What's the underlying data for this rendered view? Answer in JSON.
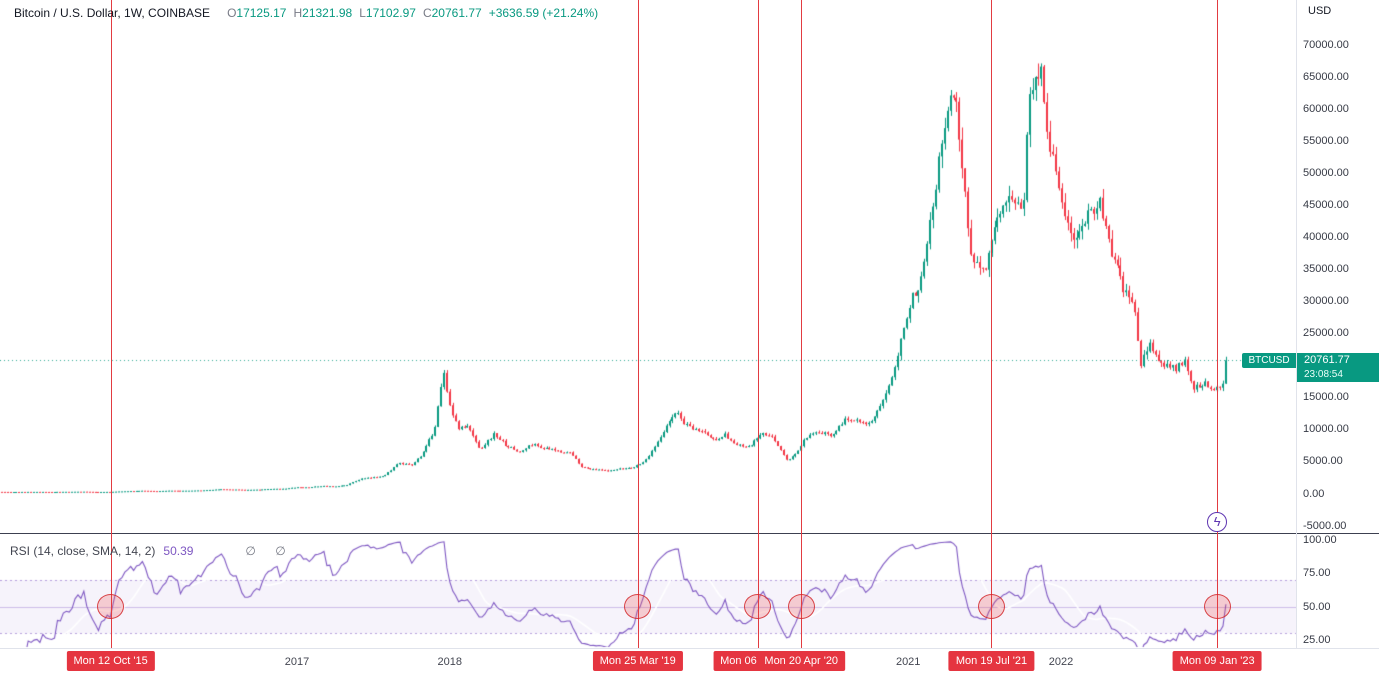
{
  "header": {
    "symbol_title": "Bitcoin / U.S. Dollar, 1W, COINBASE",
    "ohlc": {
      "o_label": "O",
      "o": "17125.17",
      "h_label": "H",
      "h": "21321.98",
      "l_label": "L",
      "l": "17102.97",
      "c_label": "C",
      "c": "20761.77",
      "change": "+3636.59 (+21.24%)"
    }
  },
  "symbol_badge": "BTCUSD",
  "price_axis": {
    "currency": "USD",
    "ticks": [
      "70000.00",
      "65000.00",
      "60000.00",
      "55000.00",
      "50000.00",
      "45000.00",
      "40000.00",
      "35000.00",
      "30000.00",
      "25000.00",
      "20000.00",
      "15000.00",
      "10000.00",
      "5000.00",
      "0.00",
      "-5000.00"
    ],
    "price_badge": "20761.77",
    "countdown": "23:08:54"
  },
  "rsi_panel": {
    "title": "RSI (14, close, SMA, 14, 2)",
    "value": "50.39",
    "empty_markers": "∅ ∅",
    "ticks": [
      "100.00",
      "75.00",
      "50.00",
      "25.00"
    ]
  },
  "time_axis": {
    "years": [
      "2017",
      "2018",
      "2021",
      "2022"
    ]
  },
  "markers": [
    {
      "date_label": "Mon 12 Oct '15",
      "date_value": 2015.78,
      "rsi_value": 50
    },
    {
      "date_label": "Mon 25 Mar '19",
      "date_value": 2019.23,
      "rsi_value": 50
    },
    {
      "date_label": "Mon 06 Jan '20",
      "date_value": 2020.014,
      "rsi_value": 50
    },
    {
      "date_label": "Mon 20 Apr '20",
      "date_value": 2020.3,
      "rsi_value": 50
    },
    {
      "date_label": "Mon 19 Jul '21",
      "date_value": 2021.545,
      "rsi_value": 50
    },
    {
      "date_label": "Mon 09 Jan '23",
      "date_value": 2023.022,
      "rsi_value": 50,
      "has_lightning": true
    }
  ],
  "icons": {
    "lightning": "ϟ"
  },
  "colors": {
    "up": "#089981",
    "down": "#f23645",
    "rsi_line": "#7e57c2",
    "rsi_band_fill": "rgba(126,87,194,0.07)",
    "marker_red": "#e53540",
    "accent_teal": "#089981"
  },
  "chart_data": {
    "type": "candlestick",
    "title": "Bitcoin / U.S. Dollar, 1W, COINBASE",
    "interval": "1W",
    "current_price": 20761.77,
    "last_candle": {
      "open": 17125.17,
      "high": 21321.98,
      "low": 17102.97,
      "close": 20761.77
    },
    "y_axis": {
      "min": -5000,
      "max": 70000,
      "tick_step": 5000,
      "label": "USD"
    },
    "x_axis": {
      "start_year": 2014.8,
      "end_year": 2023.09,
      "visible_year_labels": [
        "2017",
        "2018",
        "2021",
        "2022"
      ]
    },
    "indicator": {
      "name": "RSI",
      "length": 14,
      "source": "close",
      "smoothing": "SMA 14",
      "current": 50.39,
      "upper_band": 70,
      "lower_band": 30,
      "mid": 50,
      "scale_ticks": [
        100,
        75,
        50,
        25
      ]
    },
    "price_keyframes": [
      [
        2014.8,
        360
      ],
      [
        2015.0,
        280
      ],
      [
        2015.1,
        235
      ],
      [
        2015.25,
        245
      ],
      [
        2015.4,
        237
      ],
      [
        2015.5,
        263
      ],
      [
        2015.6,
        281
      ],
      [
        2015.7,
        232
      ],
      [
        2015.78,
        245
      ],
      [
        2015.85,
        330
      ],
      [
        2015.92,
        377
      ],
      [
        2016.0,
        430
      ],
      [
        2016.08,
        368
      ],
      [
        2016.17,
        437
      ],
      [
        2016.25,
        416
      ],
      [
        2016.33,
        448
      ],
      [
        2016.42,
        531
      ],
      [
        2016.5,
        670
      ],
      [
        2016.58,
        624
      ],
      [
        2016.67,
        575
      ],
      [
        2016.75,
        609
      ],
      [
        2016.83,
        700
      ],
      [
        2016.92,
        745
      ],
      [
        2017.0,
        963
      ],
      [
        2017.08,
        970
      ],
      [
        2017.17,
        1180
      ],
      [
        2017.25,
        1071
      ],
      [
        2017.33,
        1347
      ],
      [
        2017.42,
        2286
      ],
      [
        2017.5,
        2480
      ],
      [
        2017.58,
        2875
      ],
      [
        2017.65,
        4400
      ],
      [
        2017.67,
        4703
      ],
      [
        2017.75,
        4360
      ],
      [
        2017.83,
        6440
      ],
      [
        2017.9,
        9900
      ],
      [
        2017.96,
        19000
      ],
      [
        2018.0,
        13850
      ],
      [
        2018.05,
        10200
      ],
      [
        2018.12,
        10400
      ],
      [
        2018.2,
        6940
      ],
      [
        2018.29,
        9250
      ],
      [
        2018.37,
        7490
      ],
      [
        2018.46,
        6400
      ],
      [
        2018.54,
        7730
      ],
      [
        2018.62,
        7010
      ],
      [
        2018.71,
        6620
      ],
      [
        2018.79,
        6340
      ],
      [
        2018.87,
        4020
      ],
      [
        2018.96,
        3750
      ],
      [
        2019.04,
        3460
      ],
      [
        2019.12,
        3850
      ],
      [
        2019.21,
        4100
      ],
      [
        2019.29,
        5320
      ],
      [
        2019.37,
        8570
      ],
      [
        2019.48,
        12800
      ],
      [
        2019.54,
        10800
      ],
      [
        2019.58,
        10090
      ],
      [
        2019.66,
        9630
      ],
      [
        2019.73,
        8310
      ],
      [
        2019.8,
        9200
      ],
      [
        2019.87,
        7570
      ],
      [
        2019.96,
        7190
      ],
      [
        2020.04,
        9350
      ],
      [
        2020.12,
        8600
      ],
      [
        2020.21,
        5000
      ],
      [
        2020.29,
        6900
      ],
      [
        2020.33,
        8660
      ],
      [
        2020.41,
        9460
      ],
      [
        2020.5,
        9140
      ],
      [
        2020.58,
        11350
      ],
      [
        2020.66,
        11660
      ],
      [
        2020.75,
        10780
      ],
      [
        2020.83,
        13800
      ],
      [
        2020.91,
        19700
      ],
      [
        2021.0,
        29000
      ],
      [
        2021.08,
        33110
      ],
      [
        2021.16,
        45240
      ],
      [
        2021.25,
        58790
      ],
      [
        2021.29,
        63500
      ],
      [
        2021.33,
        57750
      ],
      [
        2021.41,
        37280
      ],
      [
        2021.5,
        35040
      ],
      [
        2021.58,
        41630
      ],
      [
        2021.66,
        47170
      ],
      [
        2021.75,
        43790
      ],
      [
        2021.79,
        61320
      ],
      [
        2021.87,
        67500
      ],
      [
        2021.91,
        57000
      ],
      [
        2022.0,
        46200
      ],
      [
        2022.08,
        38480
      ],
      [
        2022.16,
        43190
      ],
      [
        2022.25,
        45540
      ],
      [
        2022.33,
        37710
      ],
      [
        2022.41,
        31790
      ],
      [
        2022.48,
        29000
      ],
      [
        2022.52,
        19990
      ],
      [
        2022.58,
        23290
      ],
      [
        2022.66,
        20050
      ],
      [
        2022.75,
        19430
      ],
      [
        2022.81,
        20490
      ],
      [
        2022.87,
        16500
      ],
      [
        2022.93,
        17170
      ],
      [
        2023.0,
        16540
      ],
      [
        2023.04,
        16900
      ],
      [
        2023.06,
        17125
      ],
      [
        2023.085,
        20762
      ]
    ]
  }
}
